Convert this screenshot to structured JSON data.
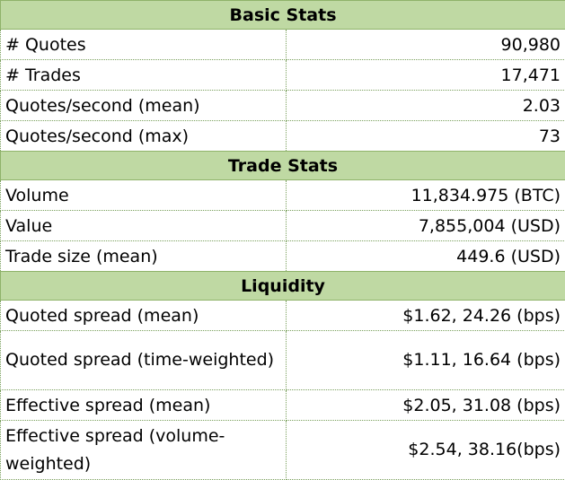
{
  "sections": [
    {
      "title": "Basic Stats",
      "rows": [
        {
          "label": "# Quotes",
          "value": "90,980"
        },
        {
          "label": "# Trades",
          "value": "17,471"
        },
        {
          "label": "Quotes/second (mean)",
          "value": "2.03"
        },
        {
          "label": "Quotes/second (max)",
          "value": "73"
        }
      ]
    },
    {
      "title": "Trade Stats",
      "rows": [
        {
          "label": "Volume",
          "value": "11,834.975 (BTC)"
        },
        {
          "label": "Value",
          "value": "7,855,004 (USD)"
        },
        {
          "label": "Trade size (mean)",
          "value": "449.6 (USD)"
        }
      ]
    },
    {
      "title": "Liquidity",
      "rows": [
        {
          "label": "Quoted spread (mean)",
          "value": "$1.62, 24.26 (bps)"
        },
        {
          "label": "Quoted spread (time-weighted)",
          "value": "$1.11, 16.64 (bps)"
        },
        {
          "label": "Effective spread (mean)",
          "value": "$2.05, 31.08 (bps)"
        },
        {
          "label": "Effective spread (volume-weighted)",
          "value": "$2.54, 38.16(bps)"
        }
      ]
    }
  ]
}
